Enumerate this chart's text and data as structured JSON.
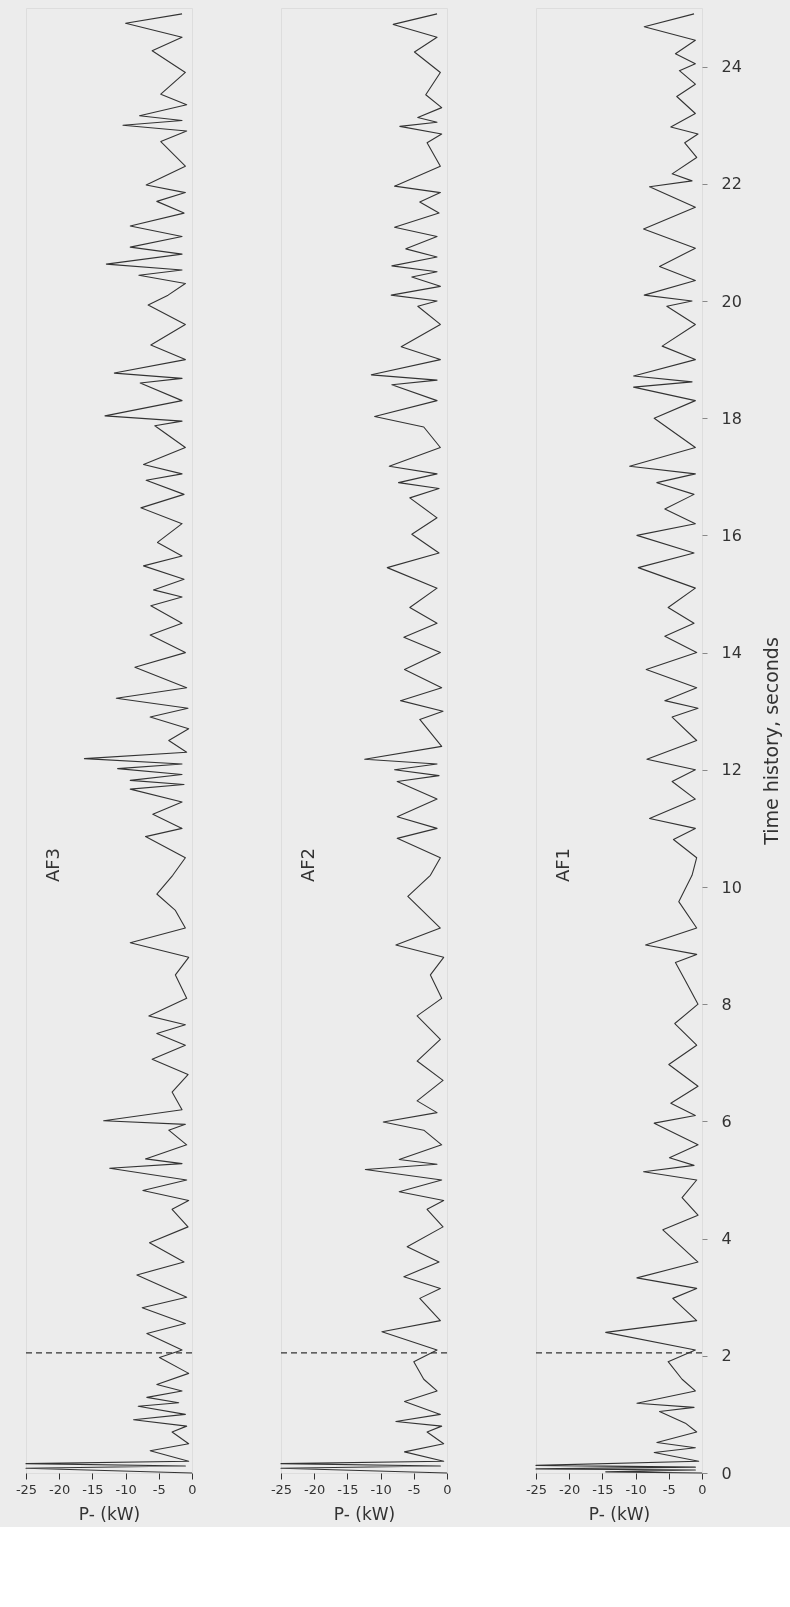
{
  "chart_data": [
    {
      "type": "line",
      "annotations": [
        "AF3"
      ],
      "xlabel": "P- (kW)",
      "ylim": [
        0,
        25
      ],
      "xlim": [
        -25,
        0
      ],
      "xticks": [
        -25,
        -20,
        -15,
        -10,
        -5,
        0
      ],
      "tick_labels": "x",
      "grid": false,
      "ref_lines": [
        {
          "axis": "y",
          "value": 2.05,
          "line_style": "dashed"
        }
      ],
      "series": [
        {
          "color": "#333333",
          "values": [
            0,
            0.08,
            0.12,
            0.16,
            0.2,
            0.38,
            0.5,
            0.7,
            0.8,
            0.91,
            1.0,
            1.14,
            1.2,
            1.29,
            1.4,
            1.51,
            1.7,
            1.97,
            2.1,
            2.38,
            2.55,
            2.82,
            3.0,
            3.38,
            3.6,
            3.93,
            4.2,
            4.5,
            4.65,
            4.82,
            5.0,
            5.2,
            5.28,
            5.36,
            5.6,
            5.85,
            5.95,
            6.01,
            6.2,
            6.5,
            6.8,
            7.06,
            7.3,
            7.5,
            7.65,
            7.8,
            8.1,
            8.5,
            8.8,
            9.05,
            9.3,
            9.6,
            9.88,
            10.2,
            10.5,
            10.86,
            11.0,
            11.24,
            11.45,
            11.67,
            11.75,
            11.82,
            11.92,
            12.02,
            12.1,
            12.19,
            12.3,
            12.5,
            12.7,
            12.9,
            13.05,
            13.22,
            13.4,
            13.75,
            14.0,
            14.3,
            14.5,
            14.8,
            14.95,
            15.07,
            15.25,
            15.48,
            15.65,
            15.88,
            16.2,
            16.47,
            16.7,
            16.94,
            17.05,
            17.21,
            17.5,
            17.87,
            17.95,
            18.04,
            18.3,
            18.6,
            18.68,
            18.77,
            19.0,
            19.25,
            19.6,
            19.93,
            20.1,
            20.3,
            20.44,
            20.53,
            20.63,
            20.8,
            20.92,
            21.1,
            21.28,
            21.5,
            21.7,
            21.85,
            21.98,
            22.3,
            22.72,
            22.9,
            23.0,
            23.08,
            23.16,
            23.35,
            23.53,
            23.9,
            24.27,
            24.5,
            24.74,
            24.9
          ],
          "x": [
            0,
            -25,
            -1,
            -25,
            -0.5,
            -6.3,
            -0.5,
            -3.0,
            -0.8,
            -8.8,
            -1.0,
            -8.1,
            -2,
            -6.8,
            -1.5,
            -5.3,
            -0.5,
            -4.9,
            -1.5,
            -6.8,
            -1.0,
            -7.5,
            -0.8,
            -8.3,
            -1.2,
            -6.4,
            -0.6,
            -3.0,
            -0.5,
            -7.4,
            -0.8,
            -12.4,
            -1.5,
            -7.0,
            -0.8,
            -3.5,
            -1.0,
            -13.3,
            -1.5,
            -3.0,
            -0.6,
            -6.0,
            -1.0,
            -5.3,
            -1.0,
            -6.5,
            -0.8,
            -2.5,
            -0.5,
            -9.3,
            -1.0,
            -2.5,
            -5.3,
            -2.9,
            -1.0,
            -7.0,
            -1.5,
            -5.9,
            -1.5,
            -9.3,
            -1.2,
            -9.3,
            -1.5,
            -11.2,
            -1.5,
            -16.2,
            -0.8,
            -3.5,
            -0.5,
            -6.3,
            -0.6,
            -11.4,
            -0.8,
            -8.6,
            -1.0,
            -6.3,
            -1.5,
            -6.2,
            -1.5,
            -5.8,
            -1.2,
            -7.3,
            -1.5,
            -5.2,
            -1.5,
            -7.7,
            -1.2,
            -6.9,
            -1.5,
            -7.3,
            -1.0,
            -5.6,
            -1.5,
            -13.1,
            -1.5,
            -7.8,
            -1.5,
            -11.7,
            -1.0,
            -6.2,
            -1.0,
            -6.6,
            -3.6,
            -1.0,
            -8.0,
            -1.5,
            -12.9,
            -1.5,
            -9.3,
            -1.5,
            -9.3,
            -1.2,
            -5.3,
            -1.0,
            -6.9,
            -1.0,
            -4.7,
            -0.8,
            -10.4,
            -1.5,
            -7.9,
            -0.8,
            -4.7,
            -1.0,
            -6.0,
            -1.5,
            -10.0,
            -1.5
          ]
        }
      ]
    },
    {
      "type": "line",
      "annotations": [
        "AF2"
      ],
      "xlabel": "P- (kW)",
      "ylim": [
        0,
        25
      ],
      "xlim": [
        -25,
        0
      ],
      "xticks": [
        -25,
        -20,
        -15,
        -10,
        -5,
        0
      ],
      "tick_labels": "x",
      "grid": false,
      "ref_lines": [
        {
          "axis": "y",
          "value": 2.05,
          "line_style": "dashed"
        }
      ],
      "series": [
        {
          "color": "#333333",
          "values": [
            0,
            0.08,
            0.12,
            0.16,
            0.2,
            0.36,
            0.5,
            0.7,
            0.8,
            0.88,
            1.0,
            1.22,
            1.4,
            1.6,
            1.9,
            2.1,
            2.41,
            2.6,
            2.98,
            3.15,
            3.35,
            3.6,
            3.86,
            4.2,
            4.5,
            4.65,
            4.8,
            5.0,
            5.18,
            5.27,
            5.35,
            5.6,
            5.85,
            5.99,
            6.15,
            6.35,
            6.7,
            7.03,
            7.4,
            7.8,
            8.1,
            8.5,
            8.8,
            9.01,
            9.3,
            9.84,
            10.2,
            10.5,
            10.83,
            11.0,
            11.2,
            11.5,
            11.8,
            11.9,
            12.0,
            12.1,
            12.18,
            12.4,
            12.86,
            13.0,
            13.18,
            13.4,
            13.71,
            14.0,
            14.26,
            14.5,
            14.77,
            15.1,
            15.45,
            15.7,
            16.02,
            16.3,
            16.64,
            16.8,
            16.9,
            17.05,
            17.18,
            17.5,
            17.85,
            18.03,
            18.3,
            18.57,
            18.65,
            18.74,
            19.0,
            19.22,
            19.6,
            19.91,
            20.0,
            20.1,
            20.25,
            20.41,
            20.5,
            20.6,
            20.75,
            20.89,
            21.1,
            21.26,
            21.5,
            21.69,
            21.85,
            21.96,
            22.3,
            22.7,
            22.85,
            22.98,
            23.05,
            23.13,
            23.3,
            23.52,
            23.9,
            24.25,
            24.5,
            24.72,
            24.9
          ],
          "x": [
            0,
            -25,
            -1,
            -25,
            -0.5,
            -6.4,
            -0.5,
            -3.0,
            -0.8,
            -7.7,
            -1.0,
            -6.4,
            -1.5,
            -3.5,
            -5.0,
            -1.5,
            -9.8,
            -1.0,
            -4.1,
            -1.0,
            -6.5,
            -1.2,
            -6.0,
            -0.6,
            -3.0,
            -0.5,
            -7.2,
            -0.8,
            -12.3,
            -1.5,
            -7.2,
            -0.8,
            -3.5,
            -9.6,
            -1.5,
            -4.5,
            -0.6,
            -4.5,
            -1.0,
            -4.5,
            -0.8,
            -2.5,
            -0.5,
            -7.7,
            -1.0,
            -5.9,
            -2.5,
            -1.0,
            -7.5,
            -1.5,
            -7.5,
            -1.5,
            -7.5,
            -1.2,
            -7.9,
            -1.5,
            -12.4,
            -0.8,
            -4.1,
            -0.6,
            -7.0,
            -0.8,
            -6.4,
            -1.0,
            -6.5,
            -1.5,
            -5.6,
            -1.5,
            -9.0,
            -1.2,
            -5.3,
            -1.5,
            -5.6,
            -1.2,
            -7.3,
            -1.5,
            -8.7,
            -1.0,
            -3.5,
            -10.9,
            -1.5,
            -8.3,
            -1.5,
            -11.4,
            -1.0,
            -6.9,
            -1.0,
            -4.4,
            -1.5,
            -8.4,
            -1.0,
            -5.3,
            -1.5,
            -8.3,
            -1.5,
            -6.2,
            -1.5,
            -7.9,
            -1.2,
            -4.1,
            -1.0,
            -7.9,
            -1.0,
            -3.0,
            -0.8,
            -7.1,
            -1.5,
            -4.4,
            -0.8,
            -3.2,
            -1.0,
            -4.9,
            -1.5,
            -8.1,
            -1.5
          ]
        }
      ]
    },
    {
      "type": "line",
      "annotations": [
        "AF1"
      ],
      "ylabel": "Time history, seconds",
      "xlabel": "P- (kW)",
      "ylim": [
        0,
        25
      ],
      "yticks": [
        0,
        2,
        4,
        6,
        8,
        10,
        12,
        14,
        16,
        18,
        20,
        22,
        24
      ],
      "xlim": [
        -25,
        0
      ],
      "xticks": [
        -25,
        -20,
        -15,
        -10,
        -5,
        0
      ],
      "grid": false,
      "ref_lines": [
        {
          "axis": "y",
          "value": 2.05,
          "line_style": "dashed"
        }
      ],
      "series": [
        {
          "color": "#333333",
          "values": [
            0,
            0.02,
            0.05,
            0.07,
            0.1,
            0.13,
            0.2,
            0.35,
            0.43,
            0.52,
            0.7,
            0.85,
            1.05,
            1.12,
            1.19,
            1.4,
            1.6,
            1.9,
            2.1,
            2.4,
            2.6,
            2.98,
            3.15,
            3.33,
            3.6,
            3.85,
            4.15,
            4.4,
            4.7,
            5.0,
            5.14,
            5.25,
            5.38,
            5.6,
            5.97,
            6.1,
            6.31,
            6.6,
            6.97,
            7.3,
            7.67,
            8.0,
            8.4,
            8.71,
            8.85,
            9.01,
            9.3,
            9.75,
            10.2,
            10.5,
            10.81,
            11.0,
            11.17,
            11.5,
            11.8,
            12.0,
            12.18,
            12.5,
            12.9,
            13.05,
            13.18,
            13.4,
            13.71,
            14.0,
            14.28,
            14.5,
            14.77,
            15.1,
            15.45,
            15.7,
            16.0,
            16.2,
            16.45,
            16.7,
            16.9,
            17.05,
            17.18,
            17.5,
            18.0,
            18.3,
            18.53,
            18.62,
            18.72,
            19.0,
            19.23,
            19.6,
            19.91,
            20.0,
            20.1,
            20.35,
            20.59,
            20.9,
            21.23,
            21.6,
            21.95,
            22.05,
            22.17,
            22.45,
            22.7,
            22.85,
            22.97,
            23.2,
            23.49,
            23.7,
            23.93,
            24.05,
            24.22,
            24.45,
            24.68,
            24.9
          ],
          "x": [
            0,
            -14.5,
            -1,
            -25,
            -1,
            -25,
            -0.5,
            -7.2,
            -1.0,
            -6.8,
            -0.8,
            -2.5,
            -6.4,
            -1.2,
            -9.8,
            -1.0,
            -3.0,
            -5.1,
            -1.0,
            -14.5,
            -0.8,
            -4.4,
            -0.8,
            -9.8,
            -0.6,
            -3.0,
            -5.9,
            -0.6,
            -3.0,
            -0.8,
            -8.8,
            -1.2,
            -4.9,
            -0.6,
            -7.2,
            -1.0,
            -4.7,
            -0.6,
            -5.0,
            -0.8,
            -4.1,
            -0.6,
            -2.5,
            -4.0,
            -0.8,
            -8.5,
            -0.8,
            -3.5,
            -1.5,
            -0.8,
            -4.3,
            -1.0,
            -7.9,
            -1.0,
            -4.5,
            -1.0,
            -8.3,
            -0.8,
            -4.5,
            -0.6,
            -5.6,
            -0.8,
            -8.4,
            -0.8,
            -5.6,
            -1.2,
            -5.1,
            -1.0,
            -9.6,
            -1.2,
            -9.8,
            -1.0,
            -5.6,
            -1.2,
            -6.8,
            -1.0,
            -10.9,
            -1.0,
            -7.2,
            -1.0,
            -10.3,
            -1.5,
            -10.3,
            -1.0,
            -6.0,
            -1.0,
            -5.3,
            -1.5,
            -8.7,
            -1.0,
            -6.4,
            -1.0,
            -8.8,
            -1.0,
            -7.9,
            -1.5,
            -4.5,
            -0.8,
            -2.6,
            -0.6,
            -4.7,
            -1.0,
            -3.8,
            -1.0,
            -3.4,
            -1.0,
            -4.0,
            -1.0,
            -8.7,
            -1.2
          ]
        }
      ]
    }
  ]
}
